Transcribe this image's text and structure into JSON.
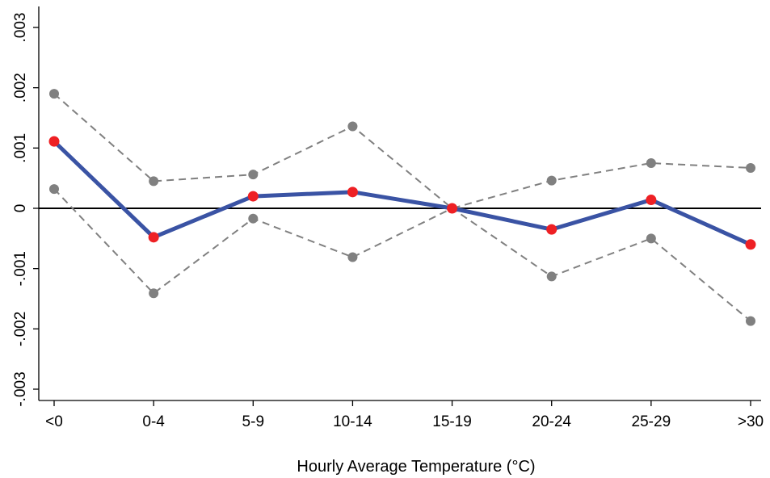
{
  "chart_data": {
    "type": "line",
    "title": "",
    "xlabel": "Hourly Average Temperature (°C)",
    "ylabel": "",
    "categories": [
      "<0",
      "0-4",
      "5-9",
      "10-14",
      "15-19",
      "20-24",
      "25-29",
      ">30"
    ],
    "ylim": [
      -0.003,
      0.003
    ],
    "yticks": [
      -0.003,
      -0.002,
      -0.001,
      0,
      0.001,
      0.002,
      0.003
    ],
    "ytick_labels": [
      "-.003",
      "-.002",
      "-.001",
      "0",
      ".001",
      ".002",
      ".003"
    ],
    "reference_line": 0,
    "grid": false,
    "legend": "none",
    "series": [
      {
        "role": "estimate",
        "style": "solid",
        "line_color": "#3a53a4",
        "marker_color": "#ee2024",
        "values": [
          0.00111,
          -0.00048,
          0.0002,
          0.00027,
          0.0,
          -0.00035,
          0.00014,
          -0.0006
        ]
      },
      {
        "role": "upper-bound",
        "style": "dashed",
        "line_color": "#808080",
        "marker_color": "#808080",
        "values": [
          0.0019,
          0.00045,
          0.00056,
          0.00136,
          0.0,
          0.00046,
          0.00075,
          0.00067
        ]
      },
      {
        "role": "lower-bound",
        "style": "dashed",
        "line_color": "#808080",
        "marker_color": "#808080",
        "values": [
          0.00032,
          -0.00141,
          -0.00017,
          -0.00081,
          0.0,
          -0.00113,
          -0.0005,
          -0.00187
        ]
      }
    ]
  }
}
